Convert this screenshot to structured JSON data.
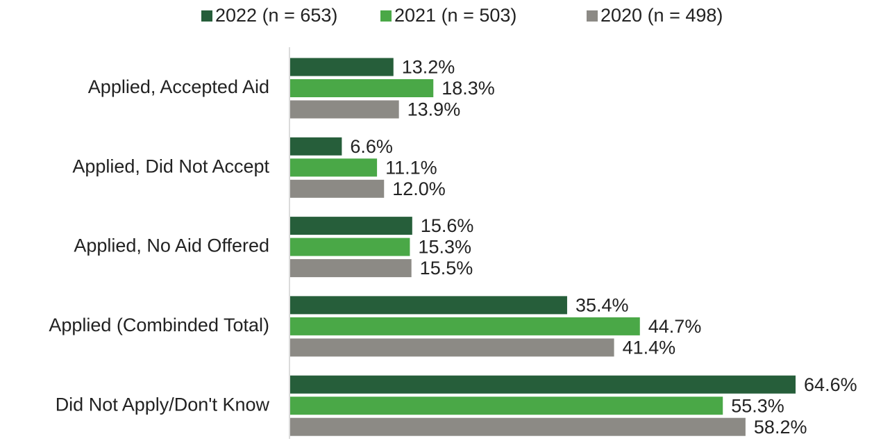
{
  "chart_data": {
    "type": "barh",
    "categories": [
      "Applied, Accepted Aid",
      "Applied, Did Not Accept",
      "Applied, No Aid Offered",
      "Applied (Combinded Total)",
      "Did Not Apply/Don't Know"
    ],
    "series": [
      {
        "name": "2022 (n = 653)",
        "color": "#265e3a",
        "values": [
          13.2,
          6.6,
          15.6,
          35.4,
          64.6
        ],
        "value_labels": [
          "13.2%",
          "6.6%",
          "15.6%",
          "35.4%",
          "64.6%"
        ]
      },
      {
        "name": "2021 (n = 503)",
        "color": "#4aa847",
        "values": [
          18.3,
          11.1,
          15.3,
          44.7,
          55.3
        ],
        "value_labels": [
          "18.3%",
          "11.1%",
          "15.3%",
          "44.7%",
          "55.3%"
        ]
      },
      {
        "name": "2020 (n = 498)",
        "color": "#8c8a85",
        "values": [
          13.9,
          12.0,
          15.5,
          41.4,
          58.2
        ],
        "value_labels": [
          "13.9%",
          "12.0%",
          "15.5%",
          "41.4%",
          "58.2%"
        ]
      }
    ],
    "legend": "top"
  }
}
